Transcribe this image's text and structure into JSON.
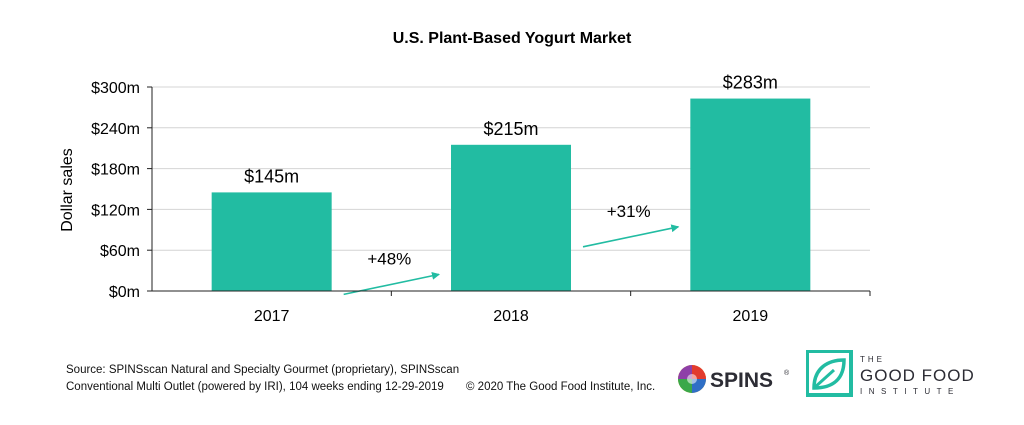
{
  "chart_data": {
    "type": "bar",
    "title": "U.S. Plant-Based Yogurt Market",
    "ylabel": "Dollar sales",
    "xlabel": "",
    "categories": [
      "2017",
      "2018",
      "2019"
    ],
    "values": [
      145,
      215,
      283
    ],
    "data_labels": [
      "$145m",
      "$215m",
      "$283m"
    ],
    "ylim": [
      0,
      300
    ],
    "yticks": [
      0,
      60,
      120,
      180,
      240,
      300
    ],
    "ytick_labels": [
      "$0m",
      "$60m",
      "$120m",
      "$180m",
      "$240m",
      "$300m"
    ],
    "grid": true,
    "legend": "none",
    "bar_color": "#22bca2",
    "annotations": [
      {
        "text": "+48%",
        "from": "2017",
        "to": "2018"
      },
      {
        "text": "+31%",
        "from": "2018",
        "to": "2019"
      }
    ]
  },
  "footer": {
    "source_line1": "Source: SPINSscan Natural and Specialty Gourmet (proprietary), SPINSscan",
    "source_line2": "Conventional Multi Outlet (powered by IRI), 104 weeks ending 12-29-2019",
    "copyright": "© 2020 The Good Food Institute, Inc."
  },
  "logos": {
    "spins": {
      "text": "SPINS",
      "mark": "®"
    },
    "gfi": {
      "the": "THE",
      "main": "GOOD FOOD",
      "sub": "INSTITUTE",
      "color": "#22bca2"
    }
  }
}
